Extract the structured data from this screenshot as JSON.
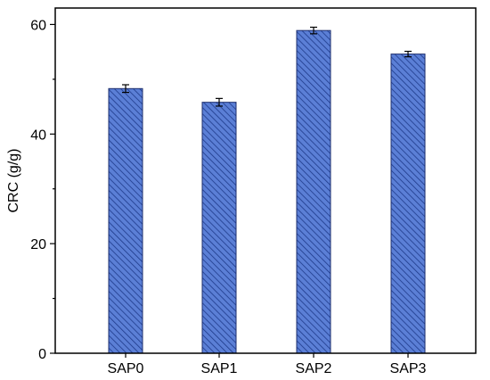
{
  "chart_data": {
    "type": "bar",
    "title": "",
    "xlabel": "",
    "ylabel": "CRC (g/g)",
    "categories": [
      "SAP0",
      "SAP1",
      "SAP2",
      "SAP3"
    ],
    "values": [
      48.3,
      45.8,
      58.9,
      54.6
    ],
    "errors": [
      0.7,
      0.7,
      0.6,
      0.5
    ],
    "ylim": [
      0,
      63
    ],
    "yticks": [
      0,
      20,
      40,
      60
    ],
    "grid": false,
    "legend": "none",
    "colors": {
      "bar_fill": "#5b7fd6",
      "bar_hatch": "#1e3a8a",
      "bar_edge": "#1e2f6e",
      "axis": "#000000"
    }
  }
}
